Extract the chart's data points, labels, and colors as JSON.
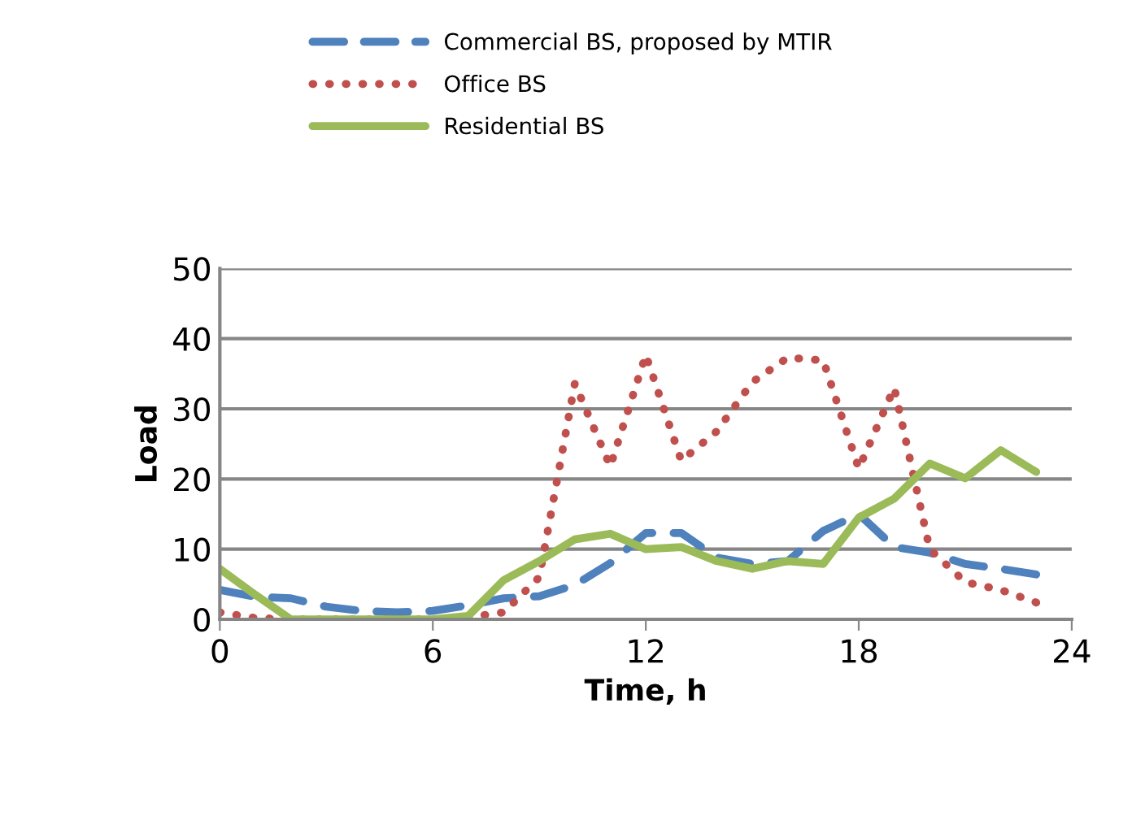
{
  "chart_data": {
    "type": "line",
    "xlabel": "Time, h",
    "ylabel": "Load",
    "x": [
      0,
      1,
      2,
      3,
      4,
      5,
      6,
      7,
      8,
      9,
      10,
      11,
      12,
      13,
      14,
      15,
      16,
      17,
      18,
      19,
      20,
      21,
      22,
      23
    ],
    "xlim": [
      0,
      24
    ],
    "xticks": [
      0,
      6,
      12,
      18,
      24
    ],
    "ylim": [
      0,
      50
    ],
    "yticks": [
      0,
      10,
      20,
      30,
      40,
      50
    ],
    "grid": "y",
    "legend": "top",
    "marker": "none",
    "series": [
      {
        "name": "Commercial BS, proposed by MTIR",
        "color": "#4f81bd",
        "line_style": "dashed",
        "values": [
          4.2,
          3.2,
          3,
          1.8,
          1.2,
          1,
          1.2,
          2,
          3,
          3.3,
          4.9,
          8,
          12.3,
          12.3,
          8.8,
          7.9,
          8.3,
          12.6,
          15,
          10.3,
          9.5,
          7.9,
          7.2,
          6.4
        ]
      },
      {
        "name": "Office BS",
        "color": "#c0504d",
        "line_style": "dotted",
        "values": [
          1,
          0.2,
          0,
          0,
          0,
          0,
          0,
          0.3,
          1,
          6,
          33.6,
          21.8,
          37.7,
          22.6,
          26.8,
          33.8,
          37.3,
          36.9,
          21.5,
          33,
          10,
          5.3,
          4.2,
          2.4
        ]
      },
      {
        "name": "Residential BS",
        "color": "#9bbb59",
        "line_style": "solid",
        "values": [
          7.2,
          3.5,
          0,
          0,
          0,
          0,
          0,
          0.5,
          5.6,
          8.3,
          11.4,
          12.2,
          10,
          10.3,
          8.3,
          7.2,
          8.3,
          7.9,
          14.5,
          17.2,
          22.2,
          20.1,
          24.1,
          21
        ]
      }
    ]
  }
}
